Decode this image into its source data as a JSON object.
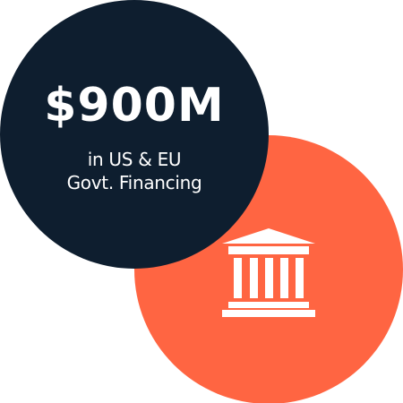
{
  "stat": {
    "value": "$900M",
    "caption_line1": "in US & EU",
    "caption_line2": "Govt. Financing"
  },
  "icons": {
    "primary": "bank-building-icon"
  },
  "colors": {
    "navy": "#0e1e2f",
    "orange": "#ff6542",
    "text": "#ffffff",
    "background": "#ffffff"
  }
}
